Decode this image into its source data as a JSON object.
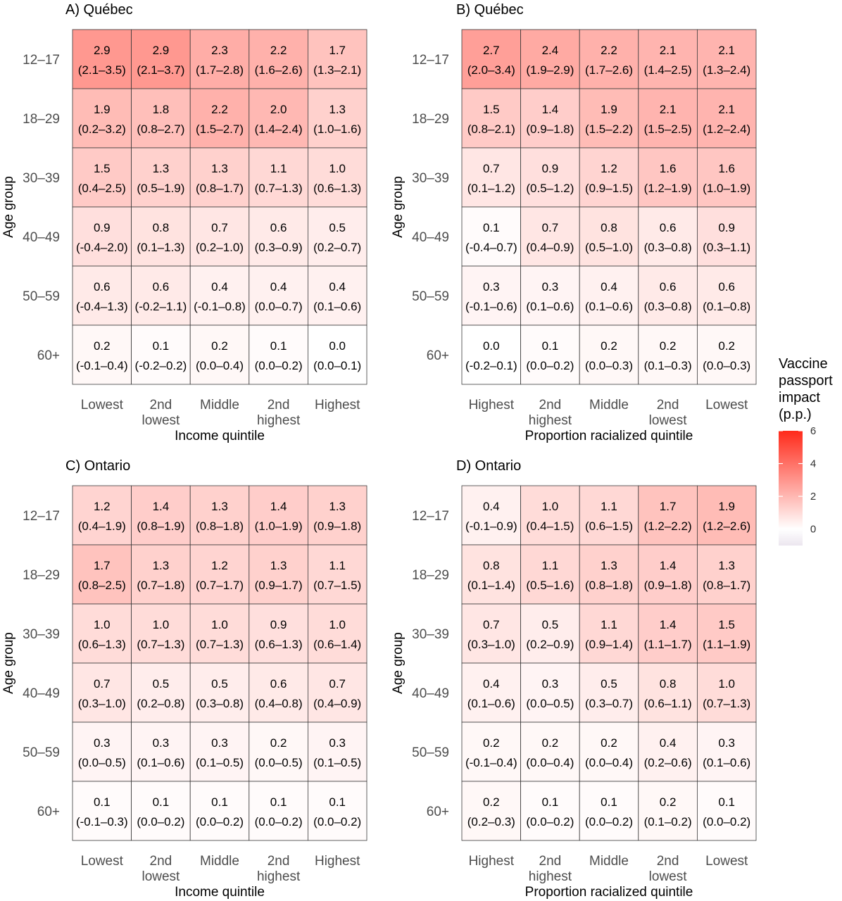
{
  "legend": {
    "title_lines": [
      "Vaccine",
      "passport",
      "impact",
      "(p.p.)"
    ],
    "ticks": [
      "6",
      "4",
      "2",
      "0"
    ],
    "tick_values": [
      6,
      4,
      2,
      0
    ],
    "range": [
      -1,
      6
    ],
    "colors": {
      "low": "#ece6ef",
      "zero": "#ffffff",
      "high": "#ff2a1a"
    }
  },
  "chart_data": [
    {
      "type": "heatmap",
      "title": "A) Québec",
      "xlabel": "Income quintile",
      "ylabel": "Age group",
      "x_categories": [
        [
          "Lowest"
        ],
        [
          "2nd",
          "lowest"
        ],
        [
          "Middle"
        ],
        [
          "2nd",
          "highest"
        ],
        [
          "Highest"
        ]
      ],
      "y_categories": [
        "12–17",
        "18–29",
        "30–39",
        "40–49",
        "50–59",
        "60+"
      ],
      "values": [
        [
          2.9,
          2.9,
          2.3,
          2.2,
          1.7
        ],
        [
          1.9,
          1.8,
          2.2,
          2.0,
          1.3
        ],
        [
          1.5,
          1.3,
          1.3,
          1.1,
          1.0
        ],
        [
          0.9,
          0.8,
          0.7,
          0.6,
          0.5
        ],
        [
          0.6,
          0.6,
          0.4,
          0.4,
          0.4
        ],
        [
          0.2,
          0.1,
          0.2,
          0.1,
          0.0
        ]
      ],
      "labels": [
        [
          "2.9",
          "2.9",
          "2.3",
          "2.2",
          "1.7"
        ],
        [
          "1.9",
          "1.8",
          "2.2",
          "2.0",
          "1.3"
        ],
        [
          "1.5",
          "1.3",
          "1.3",
          "1.1",
          "1.0"
        ],
        [
          "0.9",
          "0.8",
          "0.7",
          "0.6",
          "0.5"
        ],
        [
          "0.6",
          "0.6",
          "0.4",
          "0.4",
          "0.4"
        ],
        [
          "0.2",
          "0.1",
          "0.2",
          "0.1",
          "0.0"
        ]
      ],
      "intervals": [
        [
          "(2.1–3.5)",
          "(2.1–3.7)",
          "(1.7–2.8)",
          "(1.6–2.6)",
          "(1.3–2.1)"
        ],
        [
          "(0.2–3.2)",
          "(0.8–2.7)",
          "(1.5–2.7)",
          "(1.4–2.4)",
          "(1.0–1.6)"
        ],
        [
          "(0.4–2.5)",
          "(0.5–1.9)",
          "(0.8–1.7)",
          "(0.7–1.3)",
          "(0.6–1.3)"
        ],
        [
          "(-0.4–2.0)",
          "(0.1–1.3)",
          "(0.2–1.0)",
          "(0.3–0.9)",
          "(0.2–0.7)"
        ],
        [
          "(-0.4–1.3)",
          "(-0.2–1.1)",
          "(-0.1–0.8)",
          "(0.0–0.7)",
          "(0.1–0.6)"
        ],
        [
          "(-0.1–0.4)",
          "(-0.2–0.2)",
          "(0.0–0.4)",
          "(0.0–0.2)",
          "(0.0–0.1)"
        ]
      ]
    },
    {
      "type": "heatmap",
      "title": "B) Québec",
      "xlabel": "Proportion racialized quintile",
      "ylabel": "Age group",
      "x_categories": [
        [
          "Highest"
        ],
        [
          "2nd",
          "highest"
        ],
        [
          "Middle"
        ],
        [
          "2nd",
          "lowest"
        ],
        [
          "Lowest"
        ]
      ],
      "y_categories": [
        "12–17",
        "18–29",
        "30–39",
        "40–49",
        "50–59",
        "60+"
      ],
      "values": [
        [
          2.7,
          2.4,
          2.2,
          2.1,
          2.1
        ],
        [
          1.5,
          1.4,
          1.9,
          2.1,
          2.1
        ],
        [
          0.7,
          0.9,
          1.2,
          1.6,
          1.6
        ],
        [
          0.1,
          0.7,
          0.8,
          0.6,
          0.9
        ],
        [
          0.3,
          0.3,
          0.4,
          0.6,
          0.6
        ],
        [
          0.0,
          0.1,
          0.2,
          0.2,
          0.2
        ]
      ],
      "labels": [
        [
          "2.7",
          "2.4",
          "2.2",
          "2.1",
          "2.1"
        ],
        [
          "1.5",
          "1.4",
          "1.9",
          "2.1",
          "2.1"
        ],
        [
          "0.7",
          "0.9",
          "1.2",
          "1.6",
          "1.6"
        ],
        [
          "0.1",
          "0.7",
          "0.8",
          "0.6",
          "0.9"
        ],
        [
          "0.3",
          "0.3",
          "0.4",
          "0.6",
          "0.6"
        ],
        [
          "0.0",
          "0.1",
          "0.2",
          "0.2",
          "0.2"
        ]
      ],
      "intervals": [
        [
          "(2.0–3.4)",
          "(1.9–2.9)",
          "(1.7–2.6)",
          "(1.4–2.5)",
          "(1.3–2.4)"
        ],
        [
          "(0.8–2.1)",
          "(0.9–1.8)",
          "(1.5–2.2)",
          "(1.5–2.5)",
          "(1.2–2.4)"
        ],
        [
          "(0.1–1.2)",
          "(0.5–1.2)",
          "(0.9–1.5)",
          "(1.2–1.9)",
          "(1.0–1.9)"
        ],
        [
          "(-0.4–0.7)",
          "(0.4–0.9)",
          "(0.5–1.0)",
          "(0.3–0.8)",
          "(0.3–1.1)"
        ],
        [
          "(-0.1–0.6)",
          "(0.1–0.6)",
          "(0.1–0.6)",
          "(0.3–0.8)",
          "(0.1–0.8)"
        ],
        [
          "(-0.2–0.1)",
          "(0.0–0.2)",
          "(0.0–0.3)",
          "(0.1–0.3)",
          "(0.0–0.3)"
        ]
      ]
    },
    {
      "type": "heatmap",
      "title": "C) Ontario",
      "xlabel": "Income quintile",
      "ylabel": "Age group",
      "x_categories": [
        [
          "Lowest"
        ],
        [
          "2nd",
          "lowest"
        ],
        [
          "Middle"
        ],
        [
          "2nd",
          "highest"
        ],
        [
          "Highest"
        ]
      ],
      "y_categories": [
        "12–17",
        "18–29",
        "30–39",
        "40–49",
        "50–59",
        "60+"
      ],
      "values": [
        [
          1.2,
          1.4,
          1.3,
          1.4,
          1.3
        ],
        [
          1.7,
          1.3,
          1.2,
          1.3,
          1.1
        ],
        [
          1.0,
          1.0,
          1.0,
          0.9,
          1.0
        ],
        [
          0.7,
          0.5,
          0.5,
          0.6,
          0.7
        ],
        [
          0.3,
          0.3,
          0.3,
          0.2,
          0.3
        ],
        [
          0.1,
          0.1,
          0.1,
          0.1,
          0.1
        ]
      ],
      "labels": [
        [
          "1.2",
          "1.4",
          "1.3",
          "1.4",
          "1.3"
        ],
        [
          "1.7",
          "1.3",
          "1.2",
          "1.3",
          "1.1"
        ],
        [
          "1.0",
          "1.0",
          "1.0",
          "0.9",
          "1.0"
        ],
        [
          "0.7",
          "0.5",
          "0.5",
          "0.6",
          "0.7"
        ],
        [
          "0.3",
          "0.3",
          "0.3",
          "0.2",
          "0.3"
        ],
        [
          "0.1",
          "0.1",
          "0.1",
          "0.1",
          "0.1"
        ]
      ],
      "intervals": [
        [
          "(0.4–1.9)",
          "(0.8–1.9)",
          "(0.8–1.8)",
          "(1.0–1.9)",
          "(0.9–1.8)"
        ],
        [
          "(0.8–2.5)",
          "(0.7–1.8)",
          "(0.7–1.7)",
          "(0.9–1.7)",
          "(0.7–1.5)"
        ],
        [
          "(0.6–1.3)",
          "(0.7–1.3)",
          "(0.7–1.3)",
          "(0.6–1.3)",
          "(0.6–1.4)"
        ],
        [
          "(0.3–1.0)",
          "(0.2–0.8)",
          "(0.3–0.8)",
          "(0.4–0.8)",
          "(0.4–0.9)"
        ],
        [
          "(0.0–0.5)",
          "(0.1–0.6)",
          "(0.1–0.5)",
          "(0.0–0.5)",
          "(0.1–0.5)"
        ],
        [
          "(-0.1–0.3)",
          "(0.0–0.2)",
          "(0.0–0.2)",
          "(0.0–0.2)",
          "(0.0–0.2)"
        ]
      ]
    },
    {
      "type": "heatmap",
      "title": "D) Ontario",
      "xlabel": "Proportion racialized quintile",
      "ylabel": "Age group",
      "x_categories": [
        [
          "Highest"
        ],
        [
          "2nd",
          "highest"
        ],
        [
          "Middle"
        ],
        [
          "2nd",
          "lowest"
        ],
        [
          "Lowest"
        ]
      ],
      "y_categories": [
        "12–17",
        "18–29",
        "30–39",
        "40–49",
        "50–59",
        "60+"
      ],
      "values": [
        [
          0.4,
          1.0,
          1.1,
          1.7,
          1.9
        ],
        [
          0.8,
          1.1,
          1.3,
          1.4,
          1.3
        ],
        [
          0.7,
          0.5,
          1.1,
          1.4,
          1.5
        ],
        [
          0.4,
          0.3,
          0.5,
          0.8,
          1.0
        ],
        [
          0.2,
          0.2,
          0.2,
          0.4,
          0.3
        ],
        [
          0.2,
          0.1,
          0.1,
          0.2,
          0.1
        ]
      ],
      "labels": [
        [
          "0.4",
          "1.0",
          "1.1",
          "1.7",
          "1.9"
        ],
        [
          "0.8",
          "1.1",
          "1.3",
          "1.4",
          "1.3"
        ],
        [
          "0.7",
          "0.5",
          "1.1",
          "1.4",
          "1.5"
        ],
        [
          "0.4",
          "0.3",
          "0.5",
          "0.8",
          "1.0"
        ],
        [
          "0.2",
          "0.2",
          "0.2",
          "0.4",
          "0.3"
        ],
        [
          "0.2",
          "0.1",
          "0.1",
          "0.2",
          "0.1"
        ]
      ],
      "intervals": [
        [
          "(-0.1–0.9)",
          "(0.4–1.5)",
          "(0.6–1.5)",
          "(1.2–2.2)",
          "(1.2–2.6)"
        ],
        [
          "(0.1–1.4)",
          "(0.5–1.6)",
          "(0.8–1.8)",
          "(0.9–1.8)",
          "(0.8–1.7)"
        ],
        [
          "(0.3–1.0)",
          "(0.2–0.9)",
          "(0.9–1.4)",
          "(1.1–1.7)",
          "(1.1–1.9)"
        ],
        [
          "(0.1–0.6)",
          "(0.0–0.5)",
          "(0.3–0.7)",
          "(0.6–1.1)",
          "(0.7–1.3)"
        ],
        [
          "(-0.1–0.4)",
          "(0.0–0.4)",
          "(0.0–0.4)",
          "(0.2–0.6)",
          "(0.1–0.6)"
        ],
        [
          "(0.2–0.3)",
          "(0.0–0.2)",
          "(0.0–0.2)",
          "(0.1–0.2)",
          "(0.0–0.2)"
        ]
      ]
    }
  ]
}
